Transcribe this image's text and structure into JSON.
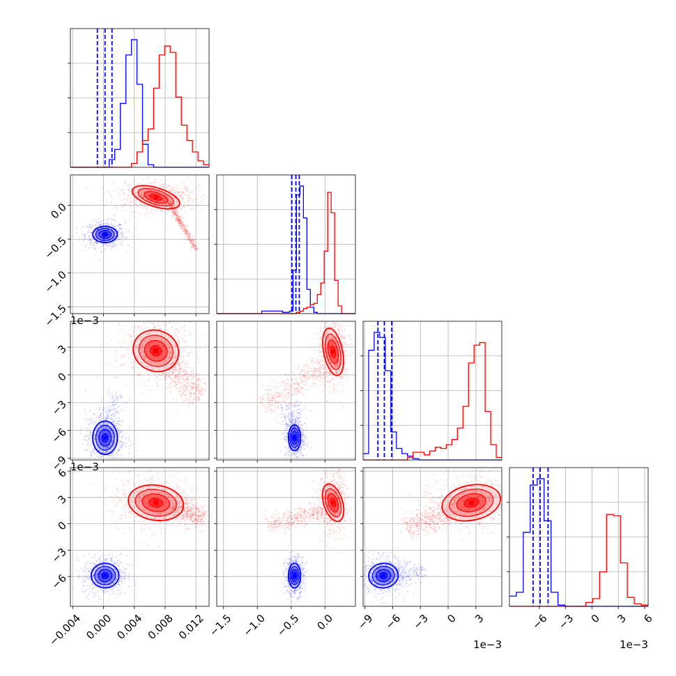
{
  "chart_data": {
    "type": "corner",
    "grid": true,
    "params": [
      {
        "ticks": [
          -0.004,
          0.0,
          0.004,
          0.008,
          0.012
        ],
        "tick_labels": [
          "−0.004",
          "0.000",
          "0.004",
          "0.008",
          "0.012"
        ],
        "range": [
          -0.0043,
          0.0137
        ],
        "offset_label": ""
      },
      {
        "ticks": [
          -1.5,
          -1.0,
          -0.5,
          0.0
        ],
        "tick_labels": [
          "−1.5",
          "−1.0",
          "−0.5",
          "0.0"
        ],
        "range": [
          -1.6,
          0.45
        ],
        "offset_label": ""
      },
      {
        "ticks": [
          -9,
          -6,
          -3,
          0,
          3
        ],
        "tick_labels": [
          "−9",
          "−6",
          "−3",
          "0",
          "3"
        ],
        "range": [
          -9.2,
          5.8
        ],
        "offset_label": "1e−3"
      },
      {
        "ticks": [
          -6,
          -3,
          0,
          3,
          6
        ],
        "tick_labels": [
          "−6",
          "−3",
          "0",
          "3",
          "6"
        ],
        "range": [
          -9.4,
          6.4
        ],
        "offset_label": "1e−3"
      }
    ],
    "series": [
      {
        "color": "#0000ff",
        "means": [
          0.0002,
          -0.43,
          -6.8,
          -5.9
        ],
        "sds": [
          0.0007,
          0.05,
          0.75,
          0.7
        ],
        "quantiles": [
          [
            -0.0008,
            0.0002,
            0.0011
          ],
          [
            -0.49,
            -0.43,
            -0.38
          ],
          [
            -7.6,
            -6.9,
            -6.1
          ],
          [
            -6.7,
            -5.9,
            -5.0
          ]
        ],
        "histograms": [
          [
            0,
            0,
            0,
            0,
            0,
            0,
            0,
            0.06,
            0.14,
            0.5,
            0.88,
            1.0,
            0.65,
            0.18,
            0.02,
            0,
            0,
            0,
            0,
            0,
            0,
            0,
            0,
            0,
            0
          ],
          [
            0,
            0,
            0,
            0,
            0,
            0,
            0,
            0,
            0,
            0,
            0,
            0,
            0,
            0.02,
            0.02,
            0.02,
            0.02,
            0.02,
            0.02,
            0.01,
            0.01,
            0.02,
            0.34,
            0.93,
            1.0,
            0.75,
            0.19,
            0.05,
            0.01,
            0,
            0,
            0,
            0,
            0,
            0,
            0,
            0,
            0,
            0,
            0
          ],
          [
            0.05,
            0.86,
            1.0,
            0.96,
            0.7,
            0.22,
            0.09,
            0.05,
            0.03,
            0.01,
            0,
            0,
            0,
            0,
            0,
            0,
            0,
            0,
            0,
            0,
            0,
            0,
            0,
            0,
            0
          ],
          [
            0.08,
            0.11,
            0.58,
            0.95,
            1.0,
            0.67,
            0.11,
            0.01,
            0,
            0,
            0,
            0,
            0,
            0,
            0,
            0,
            0,
            0,
            0,
            0
          ]
        ]
      },
      {
        "color": "#ff0000",
        "means": [
          0.0075,
          0.1,
          2.0,
          2.4
        ],
        "sds": [
          0.0018,
          0.22,
          1.8,
          1.2
        ],
        "quantiles": [],
        "histograms": [
          [
            0,
            0,
            0,
            0,
            0,
            0,
            0,
            0,
            0,
            0,
            0,
            0.03,
            0.12,
            0.21,
            0.3,
            0.62,
            0.88,
            0.95,
            0.9,
            0.55,
            0.33,
            0.21,
            0.12,
            0.05,
            0.02
          ],
          [
            0,
            0,
            0,
            0,
            0,
            0,
            0,
            0,
            0,
            0,
            0,
            0,
            0,
            0,
            0,
            0,
            0,
            0,
            0,
            0,
            0,
            0,
            0,
            0.01,
            0.02,
            0.04,
            0.05,
            0.07,
            0.08,
            0.15,
            0.24,
            0.49,
            0.95,
            0.79,
            0.26,
            0.06,
            0,
            0,
            0,
            0
          ],
          [
            0,
            0,
            0,
            0,
            0,
            0,
            0,
            0,
            0.02,
            0.06,
            0.06,
            0.04,
            0.07,
            0.1,
            0.09,
            0.12,
            0.16,
            0.25,
            0.42,
            0.76,
            0.9,
            0.92,
            0.38,
            0.12,
            0.02
          ],
          [
            0,
            0,
            0,
            0,
            0,
            0,
            0,
            0,
            0,
            0,
            0,
            0.03,
            0.06,
            0.27,
            0.72,
            0.71,
            0.34,
            0.07,
            0.02,
            0.01
          ]
        ]
      }
    ],
    "pairs": [
      {
        "row": 1,
        "col": 0,
        "blue": {
          "mean": [
            0.0002,
            -0.43
          ],
          "sd": [
            0.0008,
            0.06
          ],
          "rot": 0
        },
        "red": {
          "mean": [
            0.0068,
            0.12
          ],
          "sd": [
            0.0016,
            0.07
          ],
          "rot": -0.3
        },
        "red_tail": {
          "from": [
            0.0085,
            0.05
          ],
          "to": [
            0.012,
            -0.65
          ],
          "spread": 0.06
        }
      },
      {
        "row": 2,
        "col": 0,
        "blue": {
          "mean": [
            0.0002,
            -6.8
          ],
          "sd": [
            0.0008,
            0.9
          ],
          "rot": 0
        },
        "red": {
          "mean": [
            0.0068,
            2.6
          ],
          "sd": [
            0.0015,
            1.1
          ],
          "rot": -0.4
        },
        "red_tail": {
          "from": [
            0.0085,
            1.0
          ],
          "to": [
            0.0125,
            -2.5
          ],
          "spread": 0.6
        },
        "blue_tail": {
          "from": [
            0.0005,
            -6.0
          ],
          "to": [
            0.0015,
            -2.0
          ],
          "spread": 0.4
        }
      },
      {
        "row": 2,
        "col": 1,
        "blue": {
          "mean": [
            -0.45,
            -6.8
          ],
          "sd": [
            0.045,
            0.7
          ],
          "rot": 0
        },
        "red": {
          "mean": [
            0.12,
            2.5
          ],
          "sd": [
            0.07,
            1.3
          ],
          "rot": 0.2
        },
        "red_tail": {
          "from": [
            0.0,
            1.0
          ],
          "to": [
            -0.9,
            -3.5
          ],
          "spread": 0.5
        },
        "blue_tail": {
          "from": [
            -0.45,
            -6.0
          ],
          "to": [
            -0.48,
            -3.0
          ],
          "spread": 0.5
        }
      },
      {
        "row": 3,
        "col": 0,
        "blue": {
          "mean": [
            0.0002,
            -5.9
          ],
          "sd": [
            0.0009,
            0.7
          ],
          "rot": 0
        },
        "red": {
          "mean": [
            0.0068,
            2.4
          ],
          "sd": [
            0.0018,
            1.0
          ],
          "rot": -0.15
        },
        "red_tail": {
          "from": [
            0.009,
            2.0
          ],
          "to": [
            0.013,
            0.5
          ],
          "spread": 0.4
        }
      },
      {
        "row": 3,
        "col": 1,
        "blue": {
          "mean": [
            -0.45,
            -5.9
          ],
          "sd": [
            0.045,
            0.7
          ],
          "rot": 0
        },
        "red": {
          "mean": [
            0.12,
            2.4
          ],
          "sd": [
            0.07,
            1.1
          ],
          "rot": 0.3
        },
        "red_tail": {
          "from": [
            0.0,
            1.5
          ],
          "to": [
            -0.85,
            -0.2
          ],
          "spread": 0.35
        }
      },
      {
        "row": 3,
        "col": 2,
        "blue": {
          "mean": [
            -7.0,
            -5.9
          ],
          "sd": [
            0.8,
            0.7
          ],
          "rot": 0.1
        },
        "red": {
          "mean": [
            2.5,
            2.4
          ],
          "sd": [
            1.6,
            1.0
          ],
          "rot": 0.2
        },
        "red_tail": {
          "from": [
            0.5,
            1.5
          ],
          "to": [
            -4.5,
            -0.5
          ],
          "spread": 0.45
        },
        "blue_tail": {
          "from": [
            -6.0,
            -5.8
          ],
          "to": [
            -2.5,
            -5.5
          ],
          "spread": 0.35
        }
      }
    ]
  }
}
